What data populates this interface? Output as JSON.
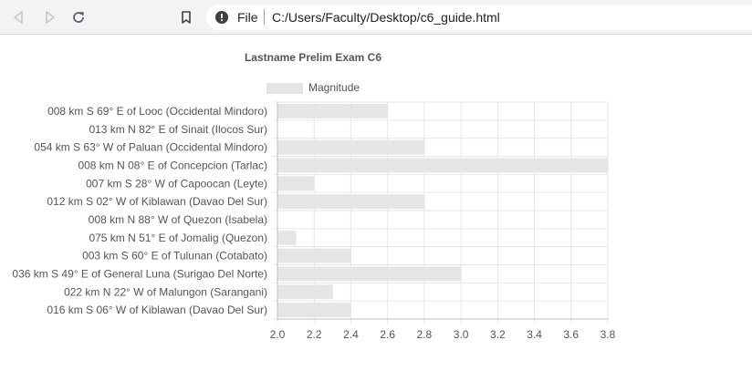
{
  "browser": {
    "scheme_label": "File",
    "url": "C:/Users/Faculty/Desktop/c6_guide.html",
    "icons": [
      "back-arrow-icon",
      "forward-arrow-icon",
      "reload-icon",
      "bookmark-icon",
      "info-icon"
    ]
  },
  "chart_data": {
    "type": "bar",
    "orientation": "horizontal",
    "title": "Lastname Prelim Exam C6",
    "legend": {
      "position": "top",
      "label": "Magnitude"
    },
    "categories": [
      "008 km S 69° E of Looc (Occidental Mindoro)",
      "013 km N 82° E of Sinait (Ilocos Sur)",
      "054 km S 63° W of Paluan (Occidental Mindoro)",
      "008 km N 08° E of Concepcion (Tarlac)",
      "007 km S 28° W of Capoocan (Leyte)",
      "012 km S 02° W of Kiblawan (Davao Del Sur)",
      "008 km N 88° W of Quezon (Isabela)",
      "075 km N 51° E of Jomalig (Quezon)",
      "003 km S 60° E of Tulunan (Cotabato)",
      "036 km S 49° E of General Luna (Surigao Del Norte)",
      "022 km N 22° W of Malungon (Sarangani)",
      "016 km S 06° W of Kiblawan (Davao Del Sur)"
    ],
    "series": [
      {
        "name": "Magnitude",
        "values": [
          2.6,
          2.0,
          2.8,
          3.8,
          2.2,
          2.8,
          2.0,
          2.1,
          2.4,
          3.0,
          2.3,
          2.4
        ]
      }
    ],
    "xlim": [
      2.0,
      3.8
    ],
    "xticks": [
      "2.0",
      "2.2",
      "2.4",
      "2.6",
      "2.8",
      "3.0",
      "3.2",
      "3.4",
      "3.6",
      "3.8"
    ],
    "grid": true,
    "colors": {
      "bar": "#e5e5e5",
      "grid": "#e6e6e6",
      "axis": "#bdbdbd",
      "text": "#555555"
    }
  }
}
